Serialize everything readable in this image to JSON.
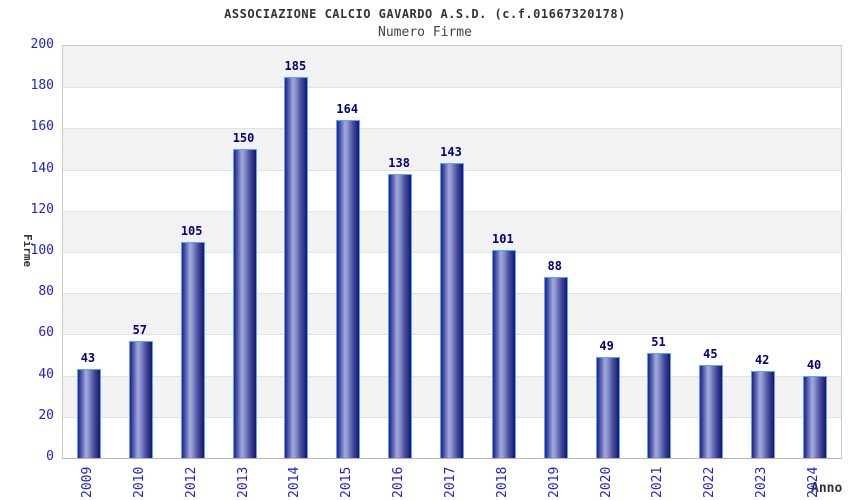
{
  "header": {
    "title": "ASSOCIAZIONE CALCIO GAVARDO A.S.D. (c.f.01667320178)",
    "subtitle": "Numero Firme"
  },
  "colors": {
    "axis_label_blue": "#2222cc",
    "value_label_navy": "#00007d",
    "bar_border_lightblue": "#58a6ff",
    "bar_dark_navy": "#16166e",
    "bar_light_mid": "#a2aadd",
    "band_gray": "#f2f2f2",
    "plot_border_gray": "#cccccc",
    "title_gray": "#333333"
  },
  "chart_data": {
    "type": "bar",
    "title": "ASSOCIAZIONE CALCIO GAVARDO A.S.D. (c.f.01667320178)",
    "subtitle": "Numero Firme",
    "xlabel": "Anno",
    "ylabel": "Firme",
    "categories": [
      "2009",
      "2010",
      "2012",
      "2013",
      "2014",
      "2015",
      "2016",
      "2017",
      "2018",
      "2019",
      "2020",
      "2021",
      "2022",
      "2023",
      "2024"
    ],
    "values": [
      43,
      57,
      105,
      150,
      185,
      164,
      138,
      143,
      101,
      88,
      49,
      51,
      45,
      42,
      40
    ],
    "ylim": [
      0,
      200
    ],
    "ytick_step": 20,
    "yticks": [
      0,
      20,
      40,
      60,
      80,
      100,
      120,
      140,
      160,
      180,
      200
    ],
    "grid": "alternating-horizontal-bands",
    "legend": "none",
    "bar_style": "vertical-cylinder-gradient",
    "x_tick_rotation_deg": -90
  }
}
